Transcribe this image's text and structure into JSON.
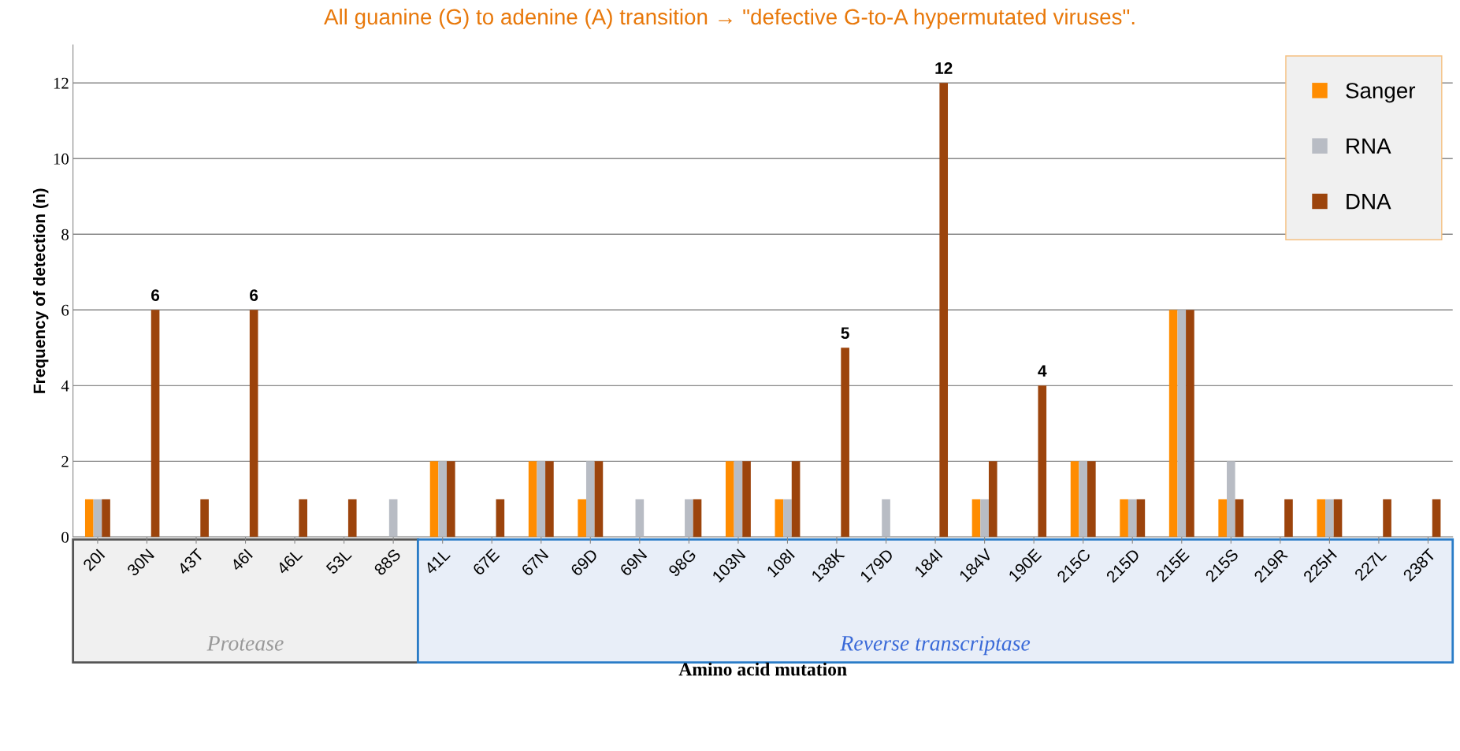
{
  "chart_data": {
    "type": "bar",
    "title": "All guanine (G) to adenine (A) transition → \"defective G-to-A hypermutated viruses\".",
    "xlabel": "Amino acid mutation",
    "ylabel": "Frequency of detection (n)",
    "categories": [
      "20I",
      "30N",
      "43T",
      "46I",
      "46L",
      "53L",
      "88S",
      "41L",
      "67E",
      "67N",
      "69D",
      "69N",
      "98G",
      "103N",
      "108I",
      "138K",
      "179D",
      "184I",
      "184V",
      "190E",
      "215C",
      "215D",
      "215E",
      "215S",
      "219R",
      "225H",
      "227L",
      "238T"
    ],
    "series": [
      {
        "name": "Sanger",
        "color": "#ff8c00",
        "values": [
          1,
          0,
          0,
          0,
          0,
          0,
          0,
          2,
          0,
          2,
          1,
          0,
          0,
          2,
          1,
          0,
          0,
          0,
          1,
          0,
          2,
          1,
          6,
          1,
          0,
          1,
          0,
          0
        ]
      },
      {
        "name": "RNA",
        "color": "#b8bcc4",
        "values": [
          1,
          0,
          0,
          0,
          0,
          0,
          1,
          2,
          0,
          2,
          2,
          1,
          1,
          2,
          1,
          0,
          1,
          0,
          1,
          0,
          2,
          1,
          6,
          2,
          0,
          1,
          0,
          0
        ]
      },
      {
        "name": "DNA",
        "color": "#9c440c",
        "values": [
          1,
          6,
          1,
          6,
          1,
          1,
          0,
          2,
          1,
          2,
          2,
          0,
          1,
          2,
          2,
          5,
          0,
          12,
          2,
          4,
          2,
          1,
          6,
          1,
          1,
          1,
          1,
          1
        ],
        "value_labels": [
          null,
          "6",
          null,
          "6",
          null,
          null,
          null,
          null,
          null,
          null,
          null,
          null,
          null,
          null,
          null,
          "5",
          null,
          "12",
          null,
          "4",
          null,
          null,
          null,
          null,
          null,
          null,
          null,
          null
        ]
      }
    ],
    "ylim": [
      0,
      13
    ],
    "yticks": [
      0,
      2,
      4,
      6,
      8,
      10,
      12
    ],
    "grid": "y",
    "legend": "top right",
    "annotations": [
      "Protease",
      "Reverse transcriptase"
    ]
  }
}
